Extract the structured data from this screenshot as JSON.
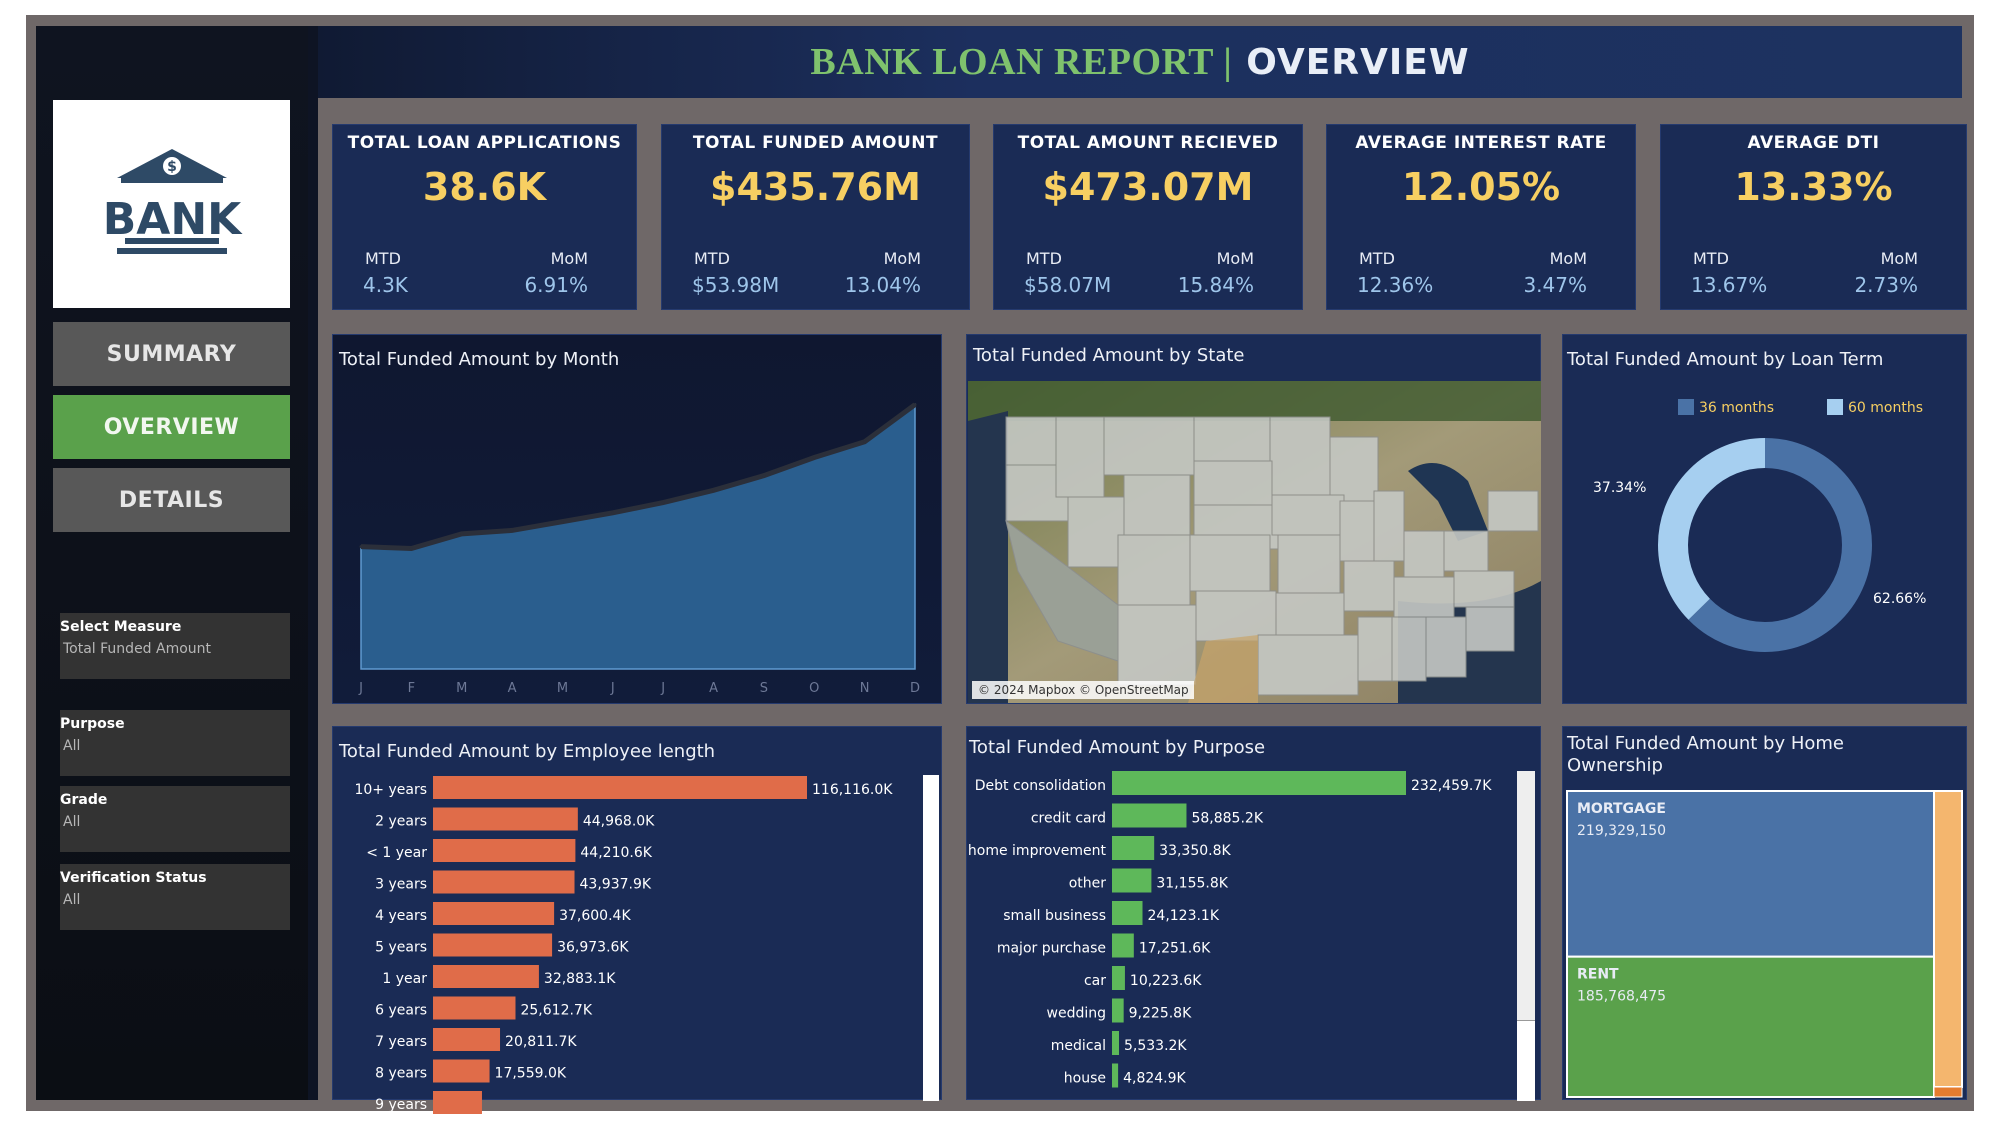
{
  "header": {
    "title_left": "BANK LOAN REPORT |",
    "title_right": "OVERVIEW"
  },
  "logo": {
    "text": "BANK",
    "icon": "bank-icon"
  },
  "nav": [
    {
      "label": "SUMMARY"
    },
    {
      "label": "OVERVIEW"
    },
    {
      "label": "DETAILS"
    }
  ],
  "filters": [
    {
      "label": "Select Measure",
      "value": "Total Funded Amount"
    },
    {
      "label": "Purpose",
      "value": "All"
    },
    {
      "label": "Grade",
      "value": "All"
    },
    {
      "label": "Verification Status",
      "value": "All"
    }
  ],
  "kpis": [
    {
      "title": "TOTAL LOAN APPLICATIONS",
      "value": "38.6K",
      "mtd_label": "MTD",
      "mtd": "4.3K",
      "mom_label": "MoM",
      "mom": "6.91%"
    },
    {
      "title": "TOTAL FUNDED AMOUNT",
      "value": "$435.76M",
      "mtd_label": "MTD",
      "mtd": "$53.98M",
      "mom_label": "MoM",
      "mom": "13.04%"
    },
    {
      "title": "TOTAL AMOUNT RECIEVED",
      "value": "$473.07M",
      "mtd_label": "MTD",
      "mtd": "$58.07M",
      "mom_label": "MoM",
      "mom": "15.84%"
    },
    {
      "title": "AVERAGE INTEREST RATE",
      "value": "12.05%",
      "mtd_label": "MTD",
      "mtd": "12.36%",
      "mom_label": "MoM",
      "mom": "3.47%"
    },
    {
      "title": "AVERAGE DTI",
      "value": "13.33%",
      "mtd_label": "MTD",
      "mtd": "13.67%",
      "mom_label": "MoM",
      "mom": "2.73%"
    }
  ],
  "panels": {
    "month": "Total Funded Amount by Month",
    "state": "Total Funded Amount by State",
    "term": "Total Funded Amount by Loan Term",
    "emp": "Total Funded Amount by Employee length",
    "purpose": "Total Funded Amount by Purpose",
    "home": "Total Funded Amount by Home Ownership",
    "map_attribution": "© 2024 Mapbox © OpenStreetMap"
  },
  "colors": {
    "accent_green": "#5aa14b",
    "kpi_value": "#f7cf62",
    "orange_bar": "#e06c49",
    "green_bar": "#5eb85a",
    "area": "#2a5e8e"
  },
  "chart_data": [
    {
      "type": "area",
      "categories": [
        "J",
        "F",
        "M",
        "A",
        "M",
        "J",
        "J",
        "A",
        "S",
        "O",
        "N",
        "D"
      ],
      "values": [
        25.0,
        24.6,
        27.6,
        28.3,
        30.1,
        31.9,
        34.0,
        36.5,
        39.5,
        43.2,
        46.4,
        54.0
      ],
      "ylim": [
        0,
        58
      ]
    },
    {
      "type": "pie",
      "labels": [
        "36 months",
        "60 months"
      ],
      "values": [
        62.66,
        37.34
      ],
      "value_labels": [
        "62.66%",
        "37.34%"
      ],
      "colors": [
        "#4a72a6",
        "#a6cff0"
      ]
    },
    {
      "type": "bar",
      "orientation": "horizontal",
      "categories": [
        "10+ years",
        "2 years",
        "< 1 year",
        "3 years",
        "4 years",
        "5 years",
        "1 year",
        "6 years",
        "7 years",
        "8 years",
        "9 years"
      ],
      "values": [
        116116.0,
        44968.0,
        44210.6,
        43937.9,
        37600.4,
        36973.6,
        32883.1,
        25612.7,
        20811.7,
        17559.0,
        15204.0
      ],
      "value_labels": [
        "116,116.0K",
        "44,968.0K",
        "44,210.6K",
        "43,937.9K",
        "37,600.4K",
        "36,973.6K",
        "32,883.1K",
        "25,612.7K",
        "20,811.7K",
        "17,559.0K",
        ""
      ]
    },
    {
      "type": "bar",
      "orientation": "horizontal",
      "categories": [
        "Debt consolidation",
        "credit card",
        "home improvement",
        "other",
        "small business",
        "major purchase",
        "car",
        "wedding",
        "medical",
        "house"
      ],
      "values": [
        232459.7,
        58885.2,
        33350.8,
        31155.8,
        24123.1,
        17251.6,
        10223.6,
        9225.8,
        5533.2,
        4824.9
      ],
      "value_labels": [
        "232,459.7K",
        "58,885.2K",
        "33,350.8K",
        "31,155.8K",
        "24,123.1K",
        "17,251.6K",
        "10,223.6K",
        "9,225.8K",
        "5,533.2K",
        "4,824.9K"
      ]
    },
    {
      "type": "treemap",
      "labels": [
        "MORTGAGE",
        "RENT"
      ],
      "values": [
        219329150,
        185768475
      ],
      "value_labels": [
        "219,329,150",
        "185,768,475"
      ],
      "colors": [
        "#4a72a6",
        "#5aa14b"
      ]
    }
  ]
}
